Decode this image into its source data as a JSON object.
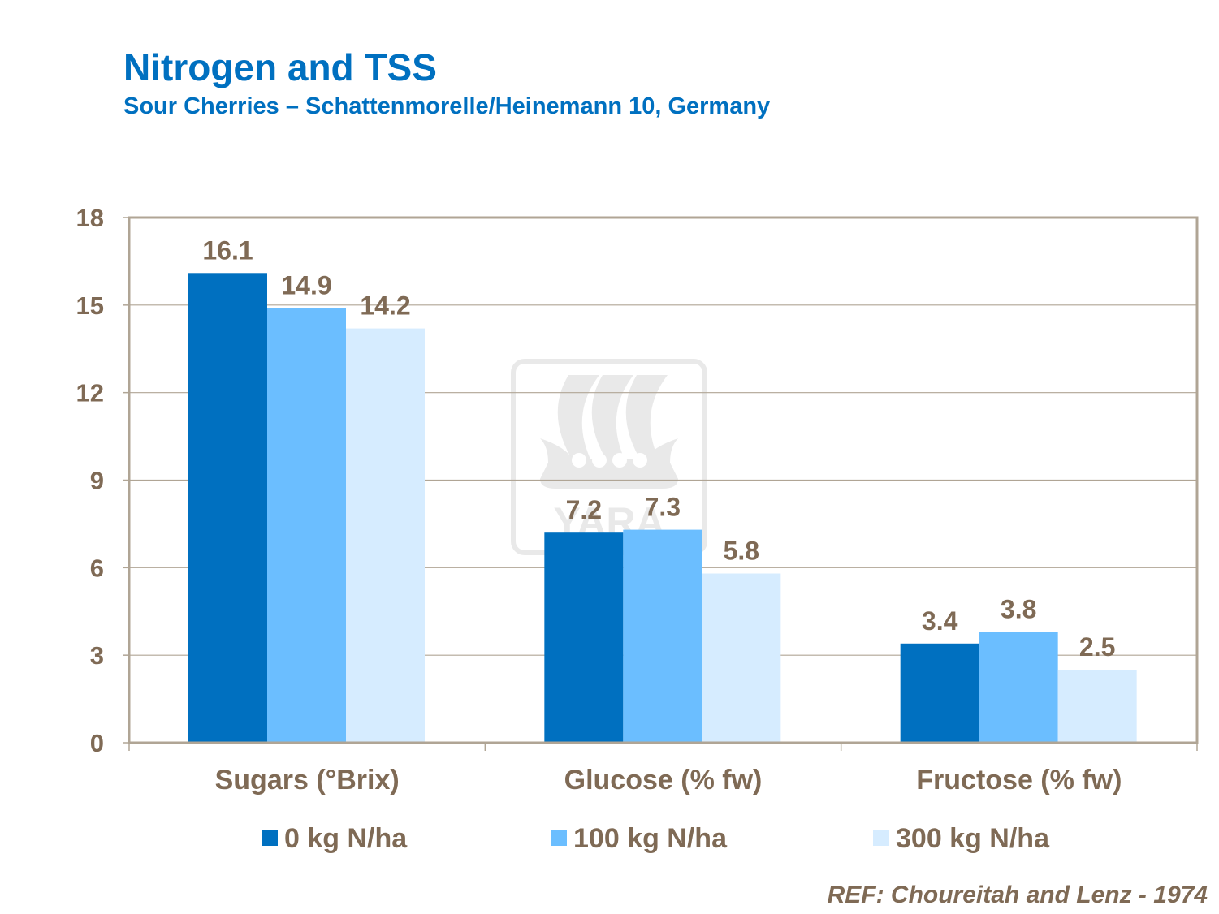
{
  "title": "Nitrogen and TSS",
  "subtitle": "Sour Cherries – Schattenmorelle/Heinemann  10, Germany",
  "reference": "REF: Choureitah and Lenz  - 1974",
  "watermark": "YARA",
  "chart_data": {
    "type": "bar",
    "categories": [
      "Sugars (°Brix)",
      "Glucose (% fw)",
      "Fructose (% fw)"
    ],
    "series": [
      {
        "name": "0 kg N/ha",
        "color": "#0070C0",
        "values": [
          16.1,
          7.2,
          3.4
        ]
      },
      {
        "name": "100 kg N/ha",
        "color": "#6BBEFF",
        "values": [
          14.9,
          7.3,
          3.8
        ]
      },
      {
        "name": "300 kg N/ha",
        "color": "#D6ECFF",
        "values": [
          14.2,
          5.8,
          2.5
        ]
      }
    ],
    "ylim": [
      0,
      18
    ],
    "yticks": [
      0,
      3,
      6,
      9,
      12,
      15,
      18
    ],
    "grid": true,
    "legend": "bottom",
    "data_labels": true
  }
}
